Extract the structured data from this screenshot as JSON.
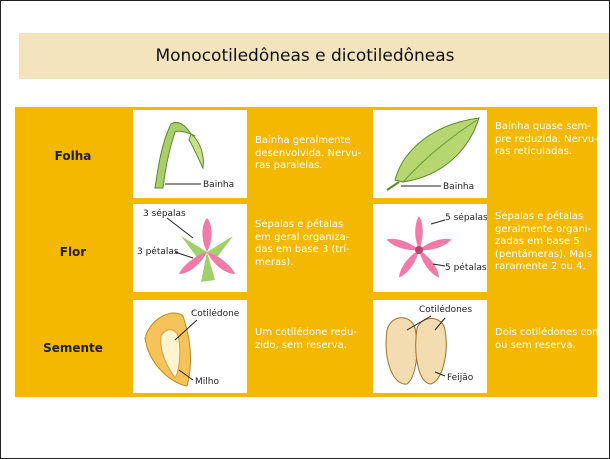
{
  "title": "Monocotiledôneas e dicotiledôneas",
  "table": {
    "rows": [
      {
        "label": "Folha",
        "mono": {
          "image_labels": [
            "Bainha"
          ],
          "lines": [
            "Bainha geralmente",
            "desenvolvida. Nervu-",
            "ras paralelas."
          ]
        },
        "dico": {
          "image_labels": [
            "Bainha"
          ],
          "lines": [
            "Bainha quase sem-",
            "pre reduzida. Nervu-",
            "ras reticuladas."
          ]
        }
      },
      {
        "label": "Flor",
        "mono": {
          "image_labels": [
            "3 sépalas",
            "3 pétalas"
          ],
          "lines": [
            "Sépalas e pétalas",
            "em geral organiza-",
            "das em base 3 (trí-",
            "meras)."
          ]
        },
        "dico": {
          "image_labels": [
            "5 sépalas",
            "5 pétalas"
          ],
          "lines": [
            "Sépalas e pétalas",
            "geralmente organi-",
            "zadas em base 5",
            "(pentâmeras). Mais",
            "raramente 2 ou 4."
          ]
        }
      },
      {
        "label": "Semente",
        "mono": {
          "image_labels": [
            "Cotilédone",
            "Milho"
          ],
          "lines": [
            "Um cotilédone redu-",
            "zido, sem reserva."
          ]
        },
        "dico": {
          "image_labels": [
            "Cotilédones",
            "Feijão"
          ],
          "lines": [
            "Dois cotilédones com",
            "ou sem reserva."
          ]
        }
      }
    ]
  }
}
